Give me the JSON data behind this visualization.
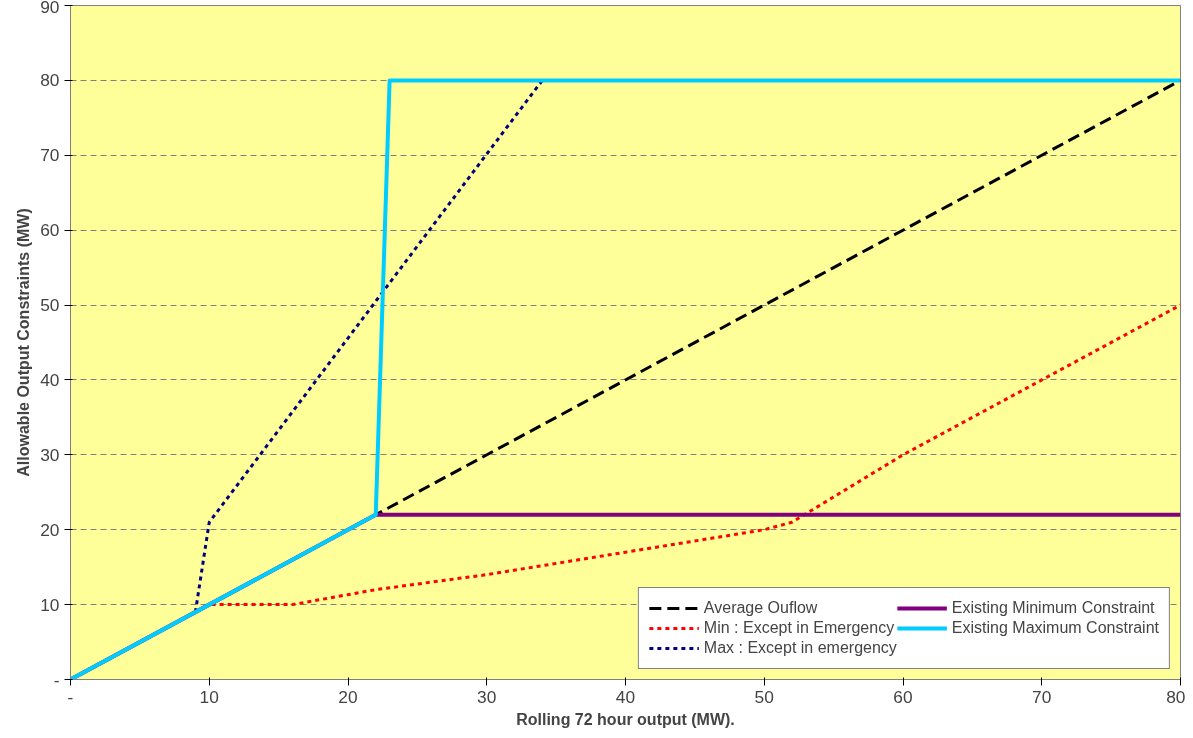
{
  "chart_data": {
    "type": "line",
    "xlabel": "Rolling 72 hour output (MW).",
    "ylabel": "Allowable Output Constraints (MW)",
    "xlim": [
      0,
      80
    ],
    "ylim": [
      0,
      90
    ],
    "xticks": [
      {
        "value": 0,
        "label": "-"
      },
      10,
      20,
      30,
      40,
      50,
      60,
      70,
      80
    ],
    "yticks": [
      {
        "value": 0,
        "label": "-"
      },
      10,
      20,
      30,
      40,
      50,
      60,
      70,
      80,
      90
    ],
    "grid": "y",
    "legend": "bottom right",
    "marker": "none",
    "series": [
      {
        "name": "Average Ouflow",
        "color": "#000000",
        "line_style": "dashed",
        "x": [
          0,
          22,
          80
        ],
        "values": [
          0,
          22,
          80
        ]
      },
      {
        "name": "Min : Except in Emergency",
        "color": "#ff0000",
        "line_style": "dotted",
        "x": [
          0,
          10,
          16,
          22,
          30,
          40,
          50,
          52,
          60,
          70,
          80
        ],
        "values": [
          0,
          10,
          10,
          12,
          14,
          17,
          20,
          21,
          30,
          40,
          50
        ]
      },
      {
        "name": "Max : Except in emergency",
        "color": "#000080",
        "line_style": "dotted",
        "x": [
          9,
          9.5,
          10,
          34,
          80
        ],
        "values": [
          9,
          15,
          21,
          80,
          80
        ]
      },
      {
        "name": "Existing Minimum Constraint",
        "color": "#800080",
        "line_style": "solid",
        "x": [
          0,
          22,
          80
        ],
        "values": [
          0,
          22,
          22
        ]
      },
      {
        "name": "Existing Maximum Constraint",
        "color": "#00ccff",
        "line_style": "solid",
        "x": [
          0,
          22,
          23,
          80
        ],
        "values": [
          0,
          22,
          80,
          80
        ]
      }
    ]
  }
}
